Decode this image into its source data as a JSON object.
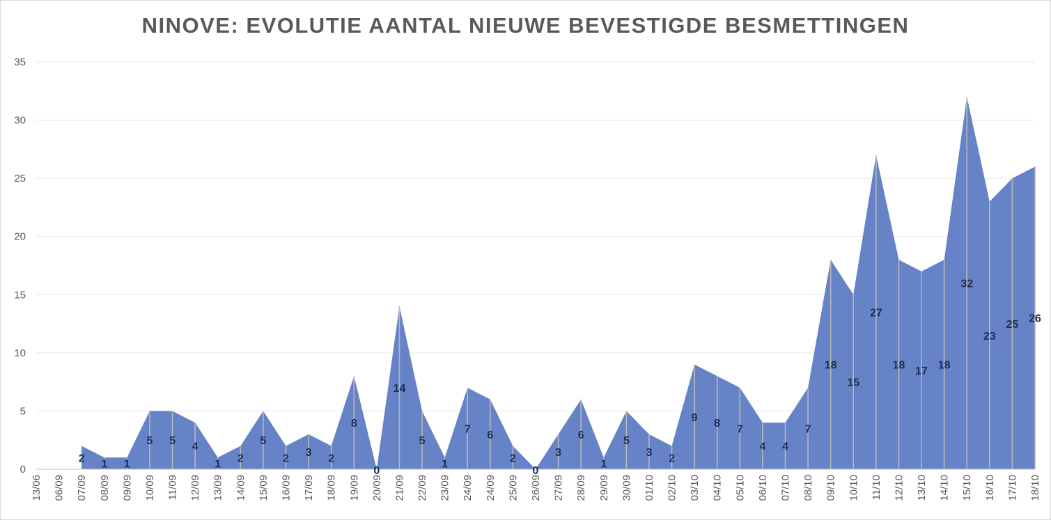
{
  "chart_data": {
    "type": "area",
    "title": "NINOVE: EVOLUTIE AANTAL NIEUWE BEVESTIGDE BESMETTINGEN",
    "xlabel": "",
    "ylabel": "",
    "ylim": [
      0,
      35
    ],
    "yticks": [
      "0",
      "5",
      "10",
      "15",
      "20",
      "25",
      "30",
      "35"
    ],
    "grid": true,
    "legend": "none",
    "series_color": "#6583c6",
    "drop_line_color": "#b8b8b8",
    "categories": [
      "13/06",
      "06/09",
      "07/09",
      "08/09",
      "09/09",
      "10/09",
      "11/09",
      "12/09",
      "13/09",
      "14/09",
      "15/09",
      "16/09",
      "17/09",
      "18/09",
      "19/09",
      "20/09",
      "21/09",
      "22/09",
      "23/09",
      "24/09",
      "24/09",
      "25/09",
      "26/09",
      "27/09",
      "28/09",
      "29/09",
      "30/09",
      "01/10",
      "02/10",
      "03/10",
      "04/10",
      "05/10",
      "06/10",
      "07/10",
      "08/10",
      "09/10",
      "10/10",
      "11/10",
      "12/10",
      "13/10",
      "14/10",
      "15/10",
      "16/10",
      "17/10",
      "18/10"
    ],
    "values": [
      null,
      null,
      2,
      1,
      1,
      5,
      5,
      4,
      1,
      2,
      5,
      2,
      3,
      2,
      8,
      0,
      14,
      5,
      1,
      7,
      6,
      2,
      0,
      3,
      6,
      1,
      5,
      3,
      2,
      9,
      8,
      7,
      4,
      4,
      7,
      18,
      15,
      27,
      18,
      17,
      18,
      32,
      23,
      25,
      26
    ],
    "data_labels": [
      "",
      "",
      "2",
      "1",
      "1",
      "5",
      "5",
      "4",
      "1",
      "2",
      "5",
      "2",
      "3",
      "2",
      "8",
      "0",
      "14",
      "5",
      "1",
      "7",
      "6",
      "2",
      "0",
      "3",
      "6",
      "1",
      "5",
      "3",
      "2",
      "9",
      "8",
      "7",
      "4",
      "4",
      "7",
      "18",
      "15",
      "27",
      "18",
      "17",
      "18",
      "32",
      "23",
      "25",
      "26"
    ]
  }
}
